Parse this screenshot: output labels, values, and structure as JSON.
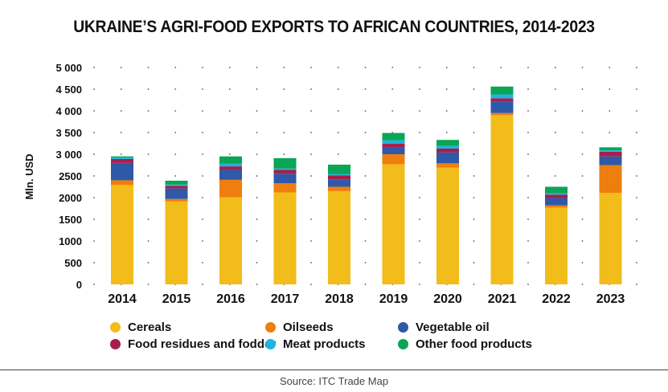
{
  "chart_data": {
    "type": "bar",
    "stacked": true,
    "title": "UKRAINE’S AGRI-FOOD EXPORTS TO AFRICAN COUNTRIES, 2014-2023",
    "xlabel": "",
    "ylabel": "Mln. USD",
    "ylim": [
      0,
      5000
    ],
    "yticks": [
      0,
      500,
      1000,
      1500,
      2000,
      2500,
      3000,
      3500,
      4000,
      4500,
      5000
    ],
    "ytick_labels": [
      "0",
      "500",
      "1000",
      "1500",
      "2000",
      "2500",
      "3 000",
      "3 500",
      "4 000",
      "4 500",
      "5 000"
    ],
    "grid": "dotted",
    "legend_position": "bottom",
    "categories": [
      "2014",
      "2015",
      "2016",
      "2017",
      "2018",
      "2019",
      "2020",
      "2021",
      "2022",
      "2023"
    ],
    "series": [
      {
        "name": "Cereals",
        "color": "#F2BC1B",
        "values": [
          2290,
          1910,
          2010,
          2120,
          2150,
          2770,
          2690,
          3900,
          1770,
          2110
        ]
      },
      {
        "name": "Oilseeds",
        "color": "#EE7E0E",
        "values": [
          110,
          60,
          400,
          210,
          100,
          230,
          100,
          50,
          50,
          640
        ]
      },
      {
        "name": "Vegetable oil",
        "color": "#2E59A8",
        "values": [
          400,
          240,
          230,
          220,
          170,
          150,
          250,
          260,
          170,
          200
        ]
      },
      {
        "name": "Food residues and fodder",
        "color": "#A61E4D",
        "values": [
          90,
          60,
          80,
          90,
          90,
          90,
          90,
          80,
          80,
          110
        ]
      },
      {
        "name": "Meat products",
        "color": "#1BB5E0",
        "values": [
          30,
          30,
          60,
          30,
          30,
          80,
          60,
          90,
          30,
          30
        ]
      },
      {
        "name": "Other food products",
        "color": "#0AA555",
        "values": [
          30,
          90,
          170,
          240,
          220,
          170,
          140,
          180,
          150,
          70
        ]
      }
    ]
  },
  "source": "Source: ITC Trade Map"
}
